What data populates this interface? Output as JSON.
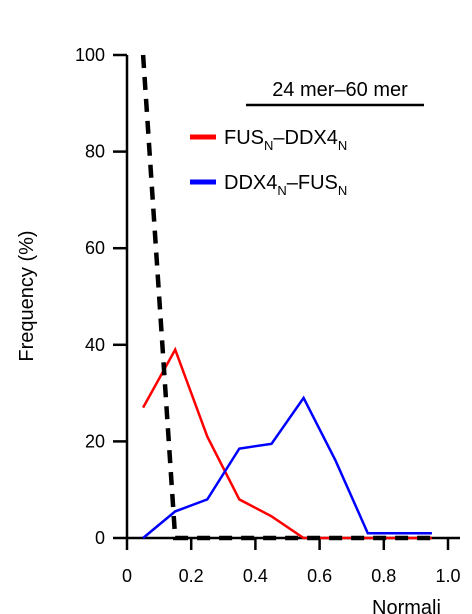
{
  "chart_data": {
    "type": "line",
    "title": "",
    "xlabel": "Normali",
    "ylabel": "Frequency (%)",
    "xlim": [
      0,
      1.0
    ],
    "ylim": [
      0,
      100
    ],
    "xticks": [
      "0",
      "0.2",
      "0.4",
      "0.6",
      "0.8",
      "1.0"
    ],
    "yticks": [
      "0",
      "20",
      "40",
      "60",
      "80",
      "100"
    ],
    "legend": {
      "title": "24 mer–60 mer",
      "placement": "top-right",
      "items": [
        {
          "parts": [
            "FUS",
            "N",
            "–DDX4",
            "N"
          ],
          "color": "#ff0000"
        },
        {
          "parts": [
            "DDX4",
            "N",
            "–FUS",
            "N"
          ],
          "color": "#0000ff"
        }
      ]
    },
    "series": [
      {
        "name": "FUSN–DDX4N",
        "color": "#ff0000",
        "style": "solid",
        "x": [
          0.05,
          0.15,
          0.25,
          0.35,
          0.45,
          0.55,
          0.65,
          0.75,
          0.85,
          0.95
        ],
        "y": [
          27,
          39,
          21,
          8,
          4.5,
          0,
          0,
          0,
          0,
          0
        ]
      },
      {
        "name": "DDX4N–FUSN",
        "color": "#0000ff",
        "style": "solid",
        "x": [
          0.05,
          0.15,
          0.25,
          0.35,
          0.45,
          0.55,
          0.65,
          0.75,
          0.85,
          0.95
        ],
        "y": [
          0,
          5.5,
          8,
          18.5,
          19.5,
          29,
          16,
          1,
          1,
          1
        ]
      },
      {
        "name": "",
        "color": "#000000",
        "style": "dashed",
        "x": [
          0.05,
          0.15,
          0.25,
          0.35,
          0.45,
          0.55,
          0.65,
          0.75,
          0.85,
          0.95
        ],
        "y": [
          100,
          0,
          0,
          0,
          0,
          0,
          0,
          0,
          0,
          0
        ]
      }
    ]
  }
}
